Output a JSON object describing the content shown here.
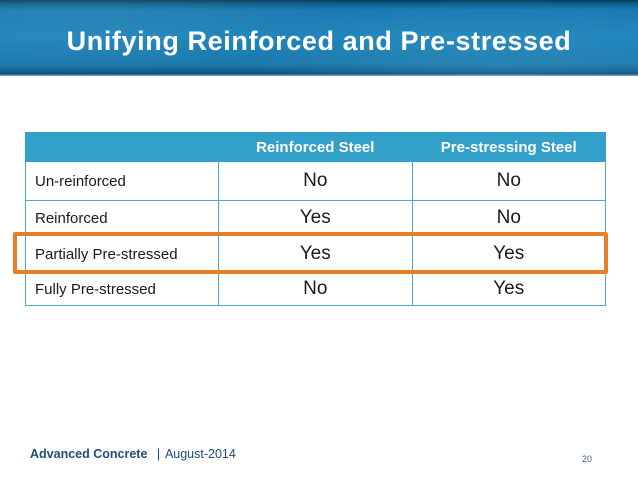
{
  "slide": {
    "title": "Unifying Reinforced and Pre-stressed",
    "table": {
      "columns": [
        "",
        "Reinforced Steel",
        "Pre-stressing Steel"
      ],
      "rows": [
        {
          "label": "Un-reinforced",
          "reinforced_steel": "No",
          "pre_stressing_steel": "No",
          "highlighted": false
        },
        {
          "label": "Reinforced",
          "reinforced_steel": "Yes",
          "pre_stressing_steel": "No",
          "highlighted": false
        },
        {
          "label": "Partially Pre-stressed",
          "reinforced_steel": "Yes",
          "pre_stressing_steel": "Yes",
          "highlighted": true
        },
        {
          "label": "Fully Pre-stressed",
          "reinforced_steel": "No",
          "pre_stressing_steel": "Yes",
          "highlighted": false
        }
      ]
    },
    "footer": {
      "brand": "Advanced Concrete",
      "separator": "|",
      "date": "August-2014",
      "page_number": "20"
    },
    "colors": {
      "banner_blue": "#1e84bb",
      "banner_dark": "#0a3c5e",
      "table_header_bg": "#33a0ca",
      "table_border": "#4bacc6",
      "highlight_orange": "#e87e2a",
      "footer_text": "#1f4e79"
    }
  }
}
